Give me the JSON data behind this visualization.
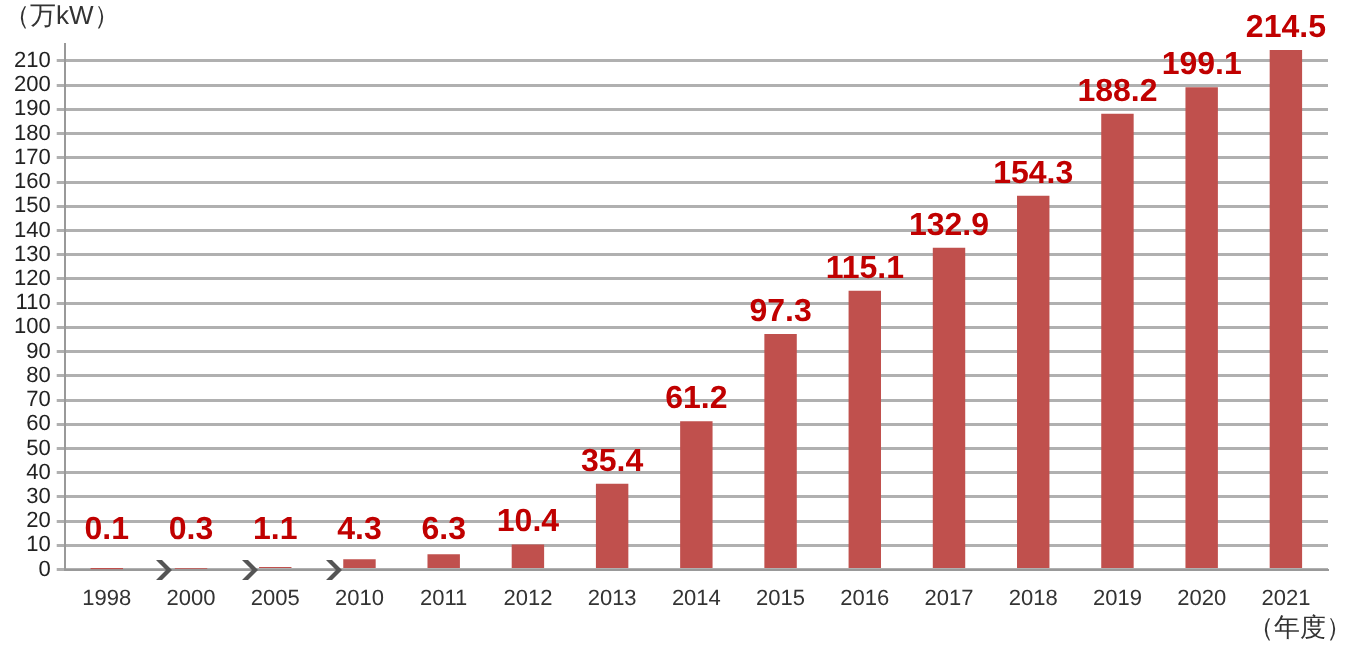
{
  "chart_data": {
    "type": "bar",
    "ylabel": "（万kW）",
    "xlabel": "（年度）",
    "categories": [
      "1998",
      "2000",
      "2005",
      "2010",
      "2011",
      "2012",
      "2013",
      "2014",
      "2015",
      "2016",
      "2017",
      "2018",
      "2019",
      "2020",
      "2021"
    ],
    "values": [
      0.1,
      0.3,
      1.1,
      4.3,
      6.3,
      10.4,
      35.4,
      61.2,
      97.3,
      115.1,
      132.9,
      154.3,
      188.2,
      199.1,
      214.5
    ],
    "color": "#c0504d",
    "data_labels": true,
    "grid": "y",
    "legend": false,
    "ylim": [
      0,
      217
    ],
    "yticks": [
      0,
      10,
      20,
      30,
      40,
      50,
      60,
      70,
      80,
      90,
      100,
      110,
      120,
      130,
      140,
      150,
      160,
      170,
      180,
      190,
      200,
      210
    ]
  }
}
